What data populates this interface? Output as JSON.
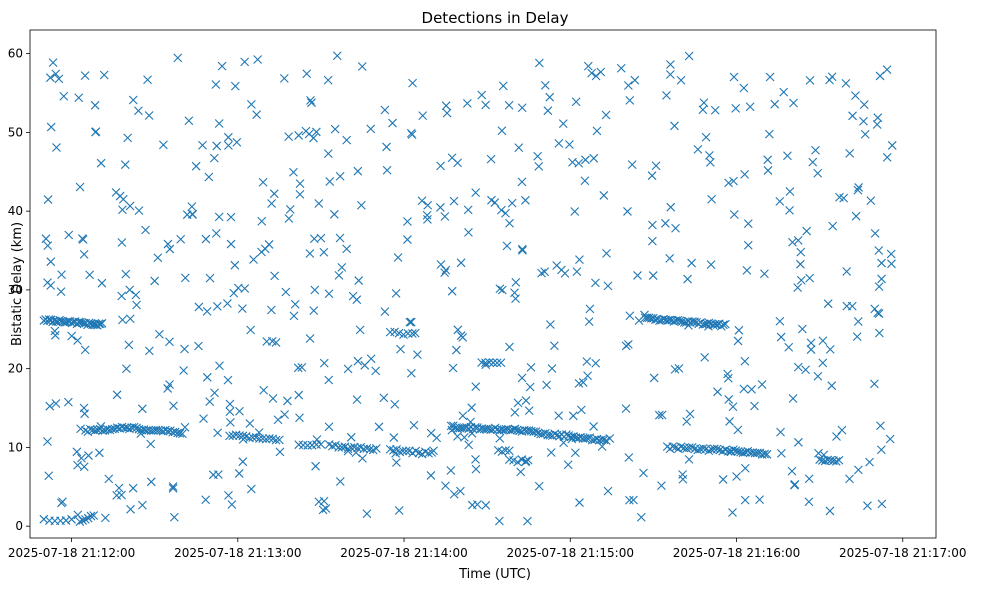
{
  "chart_data": {
    "type": "scatter",
    "title": "Detections in Delay",
    "xlabel": "Time (UTC)",
    "ylabel": "Bistatic Delay (km)",
    "x_is_time": true,
    "xlim": [
      "2025-07-18 21:11:45",
      "2025-07-18 21:17:12"
    ],
    "ylim": [
      -1.5,
      63
    ],
    "x_ticks": [
      "2025-07-18 21:12:00",
      "2025-07-18 21:13:00",
      "2025-07-18 21:14:00",
      "2025-07-18 21:15:00",
      "2025-07-18 21:16:00",
      "2025-07-18 21:17:00"
    ],
    "y_ticks": [
      "0",
      "10",
      "20",
      "30",
      "40",
      "50",
      "60"
    ],
    "y_tick_values": [
      0,
      10,
      20,
      30,
      40,
      50,
      60
    ],
    "marker": "x",
    "color": "#1f77b4",
    "grid": false,
    "tracks": [
      {
        "x0": "2025-07-18 21:11:50",
        "x1": "2025-07-18 21:12:07",
        "y0": 26.2,
        "y1": 25.7,
        "count": 28
      },
      {
        "x0": "2025-07-18 21:12:07",
        "x1": "2025-07-18 21:12:11",
        "y0": 25.7,
        "y1": 25.6,
        "count": 8
      },
      {
        "x0": "2025-07-18 21:12:05",
        "x1": "2025-07-18 21:12:20",
        "y0": 12.1,
        "y1": 12.5,
        "count": 18
      },
      {
        "x0": "2025-07-18 21:12:20",
        "x1": "2025-07-18 21:12:40",
        "y0": 12.5,
        "y1": 11.9,
        "count": 24
      },
      {
        "x0": "2025-07-18 21:12:57",
        "x1": "2025-07-18 21:13:15",
        "y0": 11.5,
        "y1": 11.0,
        "count": 16
      },
      {
        "x0": "2025-07-18 21:13:22",
        "x1": "2025-07-18 21:13:30",
        "y0": 10.4,
        "y1": 10.3,
        "count": 6
      },
      {
        "x0": "2025-07-18 21:13:33",
        "x1": "2025-07-18 21:13:50",
        "y0": 10.2,
        "y1": 9.7,
        "count": 16
      },
      {
        "x0": "2025-07-18 21:13:55",
        "x1": "2025-07-18 21:14:10",
        "y0": 9.7,
        "y1": 9.2,
        "count": 14
      },
      {
        "x0": "2025-07-18 21:13:55",
        "x1": "2025-07-18 21:14:03",
        "y0": 24.5,
        "y1": 24.5,
        "count": 6
      },
      {
        "x0": "2025-07-18 21:14:17",
        "x1": "2025-07-18 21:14:40",
        "y0": 12.6,
        "y1": 12.2,
        "count": 30
      },
      {
        "x0": "2025-07-18 21:14:40",
        "x1": "2025-07-18 21:15:13",
        "y0": 12.2,
        "y1": 10.9,
        "count": 40
      },
      {
        "x0": "2025-07-18 21:14:28",
        "x1": "2025-07-18 21:14:35",
        "y0": 20.9,
        "y1": 20.8,
        "count": 6
      },
      {
        "x0": "2025-07-18 21:14:34",
        "x1": "2025-07-18 21:14:38",
        "y0": 9.5,
        "y1": 9.5,
        "count": 4
      },
      {
        "x0": "2025-07-18 21:14:38",
        "x1": "2025-07-18 21:14:44",
        "y0": 8.3,
        "y1": 8.3,
        "count": 5
      },
      {
        "x0": "2025-07-18 21:15:27",
        "x1": "2025-07-18 21:15:56",
        "y0": 26.4,
        "y1": 25.5,
        "count": 40
      },
      {
        "x0": "2025-07-18 21:15:35",
        "x1": "2025-07-18 21:15:58",
        "y0": 10.0,
        "y1": 9.6,
        "count": 24
      },
      {
        "x0": "2025-07-18 21:15:58",
        "x1": "2025-07-18 21:16:11",
        "y0": 9.6,
        "y1": 9.2,
        "count": 16
      },
      {
        "x0": "2025-07-18 21:16:30",
        "x1": "2025-07-18 21:16:37",
        "y0": 8.3,
        "y1": 8.3,
        "count": 8
      },
      {
        "x0": "2025-07-18 21:11:50",
        "x1": "2025-07-18 21:12:00",
        "y0": 0.9,
        "y1": 0.7,
        "count": 6
      },
      {
        "x0": "2025-07-18 21:12:03",
        "x1": "2025-07-18 21:12:08",
        "y0": 0.6,
        "y1": 1.3,
        "count": 6
      }
    ],
    "background_clutter": {
      "x_range": [
        "2025-07-18 21:11:50",
        "2025-07-18 21:16:57"
      ],
      "y_range": [
        0.5,
        59.8
      ],
      "count": 620
    }
  }
}
